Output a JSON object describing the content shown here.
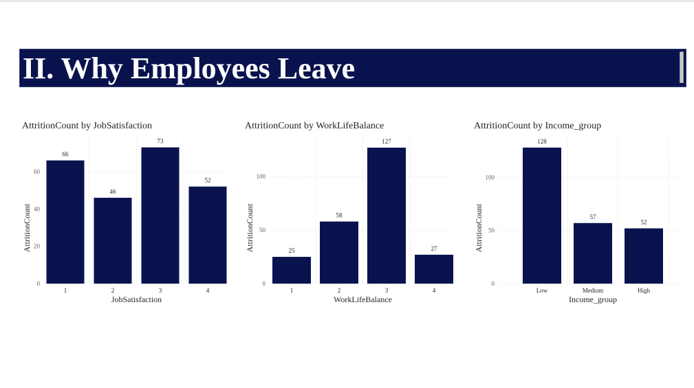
{
  "page": {
    "banner_title": "II. Why Employees Leave"
  },
  "colors": {
    "bar": "#0a124e",
    "banner_bg": "#0a124e",
    "grid": "#d9d9d9"
  },
  "chart_data": [
    {
      "type": "bar",
      "title": "AttritionCount by JobSatisfaction",
      "xlabel": "JobSatisfaction",
      "ylabel": "AttritionCount",
      "categories": [
        "1",
        "2",
        "3",
        "4"
      ],
      "values": [
        66,
        46,
        73,
        52
      ],
      "yticks": [
        0,
        20,
        40,
        60
      ],
      "ylim": [
        0,
        78
      ],
      "grid": true
    },
    {
      "type": "bar",
      "title": "AttritionCount by WorkLifeBalance",
      "xlabel": "WorkLifeBalance",
      "ylabel": "AttritionCount",
      "categories": [
        "1",
        "2",
        "3",
        "4"
      ],
      "values": [
        25,
        58,
        127,
        27
      ],
      "yticks": [
        0,
        50,
        100
      ],
      "ylim": [
        0,
        136
      ],
      "grid": true
    },
    {
      "type": "bar",
      "title": "AttritionCount by Income_group",
      "xlabel": "Income_group",
      "ylabel": "AttritionCount",
      "categories": [
        "Low",
        "Medium",
        "High"
      ],
      "values": [
        128,
        57,
        52
      ],
      "yticks": [
        0,
        50,
        100
      ],
      "ylim": [
        0,
        137
      ],
      "grid": true
    }
  ]
}
